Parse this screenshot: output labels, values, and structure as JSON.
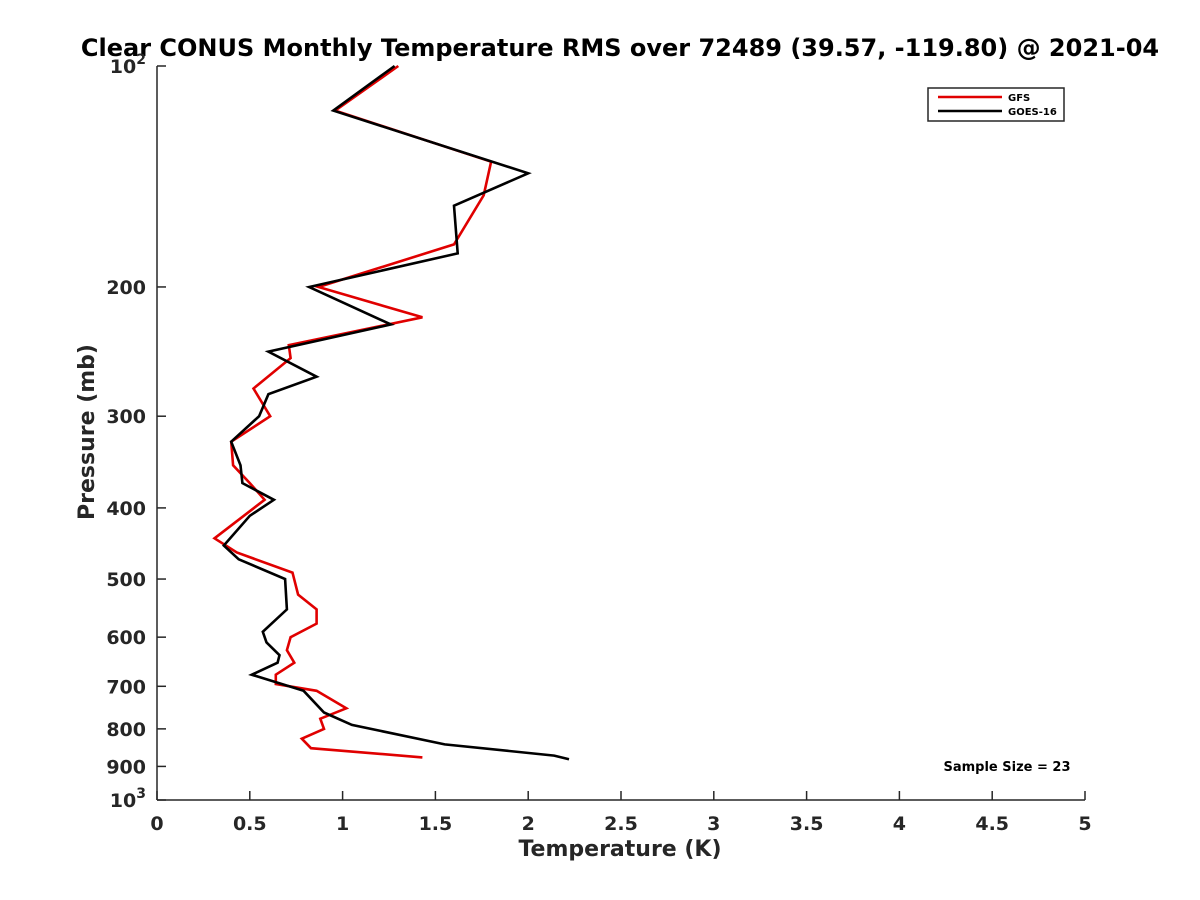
{
  "chart_data": {
    "type": "line",
    "title": "Clear CONUS Monthly Temperature RMS over 72489 (39.57, -119.80) @ 2021-04",
    "xlabel": "Temperature (K)",
    "ylabel": "Pressure (mb)",
    "xlim": [
      0,
      5
    ],
    "ylim": [
      100,
      1000
    ],
    "y_scale": "log",
    "y_reversed": true,
    "grid": false,
    "legend_position": "top-right",
    "x_ticks": [
      {
        "value": 0,
        "label": "0"
      },
      {
        "value": 0.5,
        "label": "0.5"
      },
      {
        "value": 1,
        "label": "1"
      },
      {
        "value": 1.5,
        "label": "1.5"
      },
      {
        "value": 2,
        "label": "2"
      },
      {
        "value": 2.5,
        "label": "2.5"
      },
      {
        "value": 3,
        "label": "3"
      },
      {
        "value": 3.5,
        "label": "3.5"
      },
      {
        "value": 4,
        "label": "4"
      },
      {
        "value": 4.5,
        "label": "4.5"
      },
      {
        "value": 5,
        "label": "5"
      }
    ],
    "y_ticks": [
      {
        "value": 100,
        "base": "10",
        "exp": "2"
      },
      {
        "value": 200,
        "label": "200"
      },
      {
        "value": 300,
        "label": "300"
      },
      {
        "value": 400,
        "label": "400"
      },
      {
        "value": 500,
        "label": "500"
      },
      {
        "value": 600,
        "label": "600"
      },
      {
        "value": 700,
        "label": "700"
      },
      {
        "value": 800,
        "label": "800"
      },
      {
        "value": 900,
        "label": "900"
      },
      {
        "value": 1000,
        "base": "10",
        "exp": "3"
      }
    ],
    "annotation": "Sample Size = 23",
    "series": [
      {
        "name": "GFS",
        "color": "#e00000",
        "points": [
          {
            "x": 1.3,
            "y": 100
          },
          {
            "x": 0.96,
            "y": 115
          },
          {
            "x": 1.8,
            "y": 135
          },
          {
            "x": 1.76,
            "y": 150
          },
          {
            "x": 1.6,
            "y": 175
          },
          {
            "x": 0.87,
            "y": 200
          },
          {
            "x": 1.43,
            "y": 220
          },
          {
            "x": 0.71,
            "y": 240
          },
          {
            "x": 0.72,
            "y": 250
          },
          {
            "x": 0.52,
            "y": 275
          },
          {
            "x": 0.61,
            "y": 300
          },
          {
            "x": 0.4,
            "y": 325
          },
          {
            "x": 0.41,
            "y": 350
          },
          {
            "x": 0.5,
            "y": 370
          },
          {
            "x": 0.58,
            "y": 390
          },
          {
            "x": 0.31,
            "y": 440
          },
          {
            "x": 0.43,
            "y": 460
          },
          {
            "x": 0.73,
            "y": 490
          },
          {
            "x": 0.76,
            "y": 525
          },
          {
            "x": 0.86,
            "y": 550
          },
          {
            "x": 0.86,
            "y": 575
          },
          {
            "x": 0.72,
            "y": 600
          },
          {
            "x": 0.7,
            "y": 625
          },
          {
            "x": 0.74,
            "y": 650
          },
          {
            "x": 0.64,
            "y": 675
          },
          {
            "x": 0.64,
            "y": 695
          },
          {
            "x": 0.86,
            "y": 710
          },
          {
            "x": 1.02,
            "y": 750
          },
          {
            "x": 0.88,
            "y": 775
          },
          {
            "x": 0.9,
            "y": 800
          },
          {
            "x": 0.78,
            "y": 825
          },
          {
            "x": 0.83,
            "y": 850
          },
          {
            "x": 1.43,
            "y": 875
          }
        ]
      },
      {
        "name": "GOES-16",
        "color": "#000000",
        "points": [
          {
            "x": 1.28,
            "y": 100
          },
          {
            "x": 0.95,
            "y": 115
          },
          {
            "x": 2.0,
            "y": 140
          },
          {
            "x": 1.6,
            "y": 155
          },
          {
            "x": 1.62,
            "y": 180
          },
          {
            "x": 0.82,
            "y": 200
          },
          {
            "x": 1.26,
            "y": 225
          },
          {
            "x": 0.6,
            "y": 245
          },
          {
            "x": 0.86,
            "y": 265
          },
          {
            "x": 0.6,
            "y": 280
          },
          {
            "x": 0.55,
            "y": 300
          },
          {
            "x": 0.4,
            "y": 325
          },
          {
            "x": 0.45,
            "y": 350
          },
          {
            "x": 0.46,
            "y": 370
          },
          {
            "x": 0.63,
            "y": 390
          },
          {
            "x": 0.5,
            "y": 410
          },
          {
            "x": 0.36,
            "y": 450
          },
          {
            "x": 0.44,
            "y": 470
          },
          {
            "x": 0.69,
            "y": 500
          },
          {
            "x": 0.7,
            "y": 550
          },
          {
            "x": 0.57,
            "y": 590
          },
          {
            "x": 0.59,
            "y": 610
          },
          {
            "x": 0.66,
            "y": 635
          },
          {
            "x": 0.65,
            "y": 650
          },
          {
            "x": 0.51,
            "y": 675
          },
          {
            "x": 0.79,
            "y": 710
          },
          {
            "x": 0.9,
            "y": 760
          },
          {
            "x": 1.05,
            "y": 790
          },
          {
            "x": 1.55,
            "y": 840
          },
          {
            "x": 2.14,
            "y": 870
          },
          {
            "x": 2.22,
            "y": 880
          }
        ]
      }
    ]
  }
}
